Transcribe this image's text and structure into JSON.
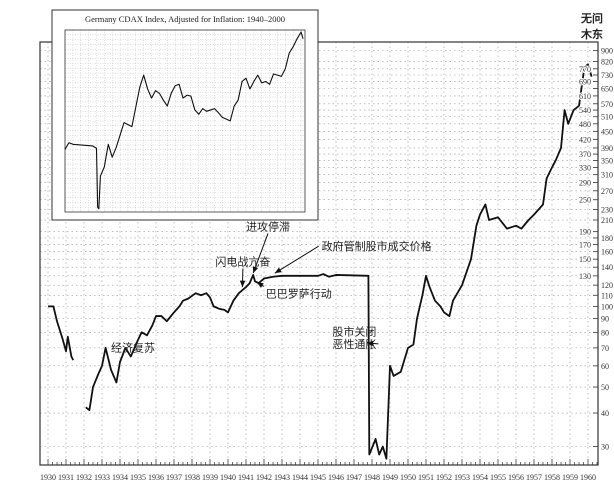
{
  "corner_label": [
    "无问",
    "木东"
  ],
  "chart_data": [
    {
      "type": "line",
      "title": "",
      "xlabel": "",
      "ylabel": "",
      "y_scale": "log",
      "xlim": [
        1929.6,
        1960.5
      ],
      "ylim": [
        26,
        900
      ],
      "grid": true,
      "x_ticks": [
        1930,
        1931,
        1932,
        1933,
        1934,
        1935,
        1936,
        1937,
        1938,
        1939,
        1940,
        1941,
        1942,
        1943,
        1944,
        1945,
        1946,
        1947,
        1948,
        1949,
        1950,
        1951,
        1952,
        1953,
        1954,
        1955,
        1956,
        1957,
        1958,
        1959,
        1960
      ],
      "y_ticks": [
        30,
        40,
        50,
        60,
        70,
        80,
        90,
        100,
        110,
        120,
        130,
        140,
        150,
        160,
        170,
        180,
        190,
        210,
        230,
        250,
        270,
        290,
        310,
        330,
        350,
        370,
        390,
        420,
        450,
        480,
        510,
        540,
        570,
        610,
        650,
        690,
        730,
        770,
        820,
        900
      ],
      "series": [
        {
          "segments": [
            [
              [
                1930,
                100
              ],
              [
                1930.3,
                100
              ],
              [
                1930.5,
                88
              ],
              [
                1930.8,
                76
              ],
              [
                1931,
                68
              ],
              [
                1931.1,
                77
              ],
              [
                1931.3,
                65
              ],
              [
                1931.4,
                63
              ]
            ],
            [
              [
                1932.1,
                42
              ],
              [
                1932.3,
                41
              ],
              [
                1932.5,
                50
              ],
              [
                1932.8,
                56
              ],
              [
                1933,
                60
              ],
              [
                1933.2,
                70
              ],
              [
                1933.5,
                58
              ],
              [
                1933.8,
                52
              ],
              [
                1934,
                62
              ],
              [
                1934.3,
                70
              ],
              [
                1934.6,
                65
              ],
              [
                1935,
                75
              ],
              [
                1935.2,
                80
              ],
              [
                1935.5,
                78
              ],
              [
                1935.8,
                85
              ],
              [
                1936,
                92
              ],
              [
                1936.3,
                92
              ],
              [
                1936.6,
                88
              ],
              [
                1937,
                95
              ],
              [
                1937.3,
                100
              ],
              [
                1937.5,
                105
              ],
              [
                1937.8,
                107
              ],
              [
                1938.2,
                112
              ],
              [
                1938.5,
                110
              ],
              [
                1938.8,
                112
              ],
              [
                1939,
                108
              ],
              [
                1939.2,
                100
              ],
              [
                1939.5,
                98
              ],
              [
                1939.8,
                97
              ],
              [
                1940,
                95
              ],
              [
                1940.3,
                105
              ],
              [
                1940.6,
                112
              ],
              [
                1941,
                118
              ],
              [
                1941.2,
                122
              ],
              [
                1941.4,
                131
              ],
              [
                1941.5,
                124
              ],
              [
                1941.7,
                122
              ],
              [
                1942,
                127
              ],
              [
                1942.5,
                129
              ],
              [
                1943,
                130
              ],
              [
                1945,
                130
              ],
              [
                1945.3,
                132
              ],
              [
                1945.6,
                129
              ],
              [
                1946,
                131
              ],
              [
                1947.8,
                130
              ],
              [
                1947.85,
                28
              ],
              [
                1948.2,
                32
              ],
              [
                1948.4,
                28
              ],
              [
                1948.6,
                30
              ],
              [
                1948.8,
                27
              ],
              [
                1949,
                60
              ],
              [
                1949.2,
                55
              ],
              [
                1949.6,
                57
              ],
              [
                1950,
                70
              ],
              [
                1950.3,
                72
              ],
              [
                1950.5,
                90
              ],
              [
                1950.8,
                110
              ],
              [
                1951,
                130
              ],
              [
                1951.2,
                118
              ],
              [
                1951.5,
                105
              ],
              [
                1951.8,
                100
              ],
              [
                1952,
                95
              ],
              [
                1952.3,
                92
              ],
              [
                1952.5,
                105
              ],
              [
                1953,
                120
              ],
              [
                1953.5,
                150
              ],
              [
                1953.8,
                200
              ],
              [
                1954,
                220
              ],
              [
                1954.3,
                240
              ],
              [
                1954.5,
                210
              ],
              [
                1955,
                215
              ],
              [
                1955.5,
                195
              ],
              [
                1956,
                200
              ],
              [
                1956.3,
                195
              ],
              [
                1956.7,
                210
              ],
              [
                1957,
                220
              ],
              [
                1957.5,
                240
              ],
              [
                1957.7,
                300
              ],
              [
                1958,
                330
              ],
              [
                1958.2,
                350
              ],
              [
                1958.5,
                390
              ],
              [
                1958.7,
                540
              ],
              [
                1958.9,
                480
              ],
              [
                1959.2,
                540
              ],
              [
                1959.5,
                560
              ],
              [
                1959.8,
                780
              ],
              [
                1960,
                800
              ],
              [
                1960.2,
                720
              ]
            ]
          ]
        }
      ],
      "annotations": [
        {
          "text": "经济复苏",
          "x": 1933.5,
          "y": 68
        },
        {
          "text": "闪电战亢奋",
          "x": 1939.3,
          "y": 142,
          "arrow_to": [
            1940.8,
            118
          ]
        },
        {
          "text": "进攻停滞",
          "x": 1941.0,
          "y": 192,
          "arrow_to": [
            1941.4,
            133
          ]
        },
        {
          "text": "巴巴罗萨行动",
          "x": 1942.1,
          "y": 108,
          "arrow_to": [
            1941.6,
            123
          ]
        },
        {
          "text": "政府管制股市成交价格",
          "x": 1945.2,
          "y": 162,
          "arrow_to": [
            1942.6,
            133
          ]
        },
        {
          "text": "股市关闭",
          "x": 1945.8,
          "y": 78
        },
        {
          "text": "恶性通胀",
          "x": 1945.8,
          "y": 70,
          "arrow_to": [
            1947.7,
            73
          ]
        }
      ]
    },
    {
      "type": "line",
      "title": "Germany CDAX Index, Adjusted for Inflation: 1940–2000",
      "y_scale": "log",
      "xlim": [
        1940,
        2001
      ],
      "ylim": [
        25,
        2100
      ],
      "grid": true,
      "series": [
        {
          "values": [
            [
              1940,
              115
            ],
            [
              1941,
              135
            ],
            [
              1942,
              130
            ],
            [
              1947,
              125
            ],
            [
              1948,
              118
            ],
            [
              1948.3,
              28
            ],
            [
              1948.6,
              27
            ],
            [
              1949,
              60
            ],
            [
              1950,
              75
            ],
            [
              1951,
              130
            ],
            [
              1952,
              95
            ],
            [
              1953,
              120
            ],
            [
              1955,
              220
            ],
            [
              1957,
              200
            ],
            [
              1959,
              520
            ],
            [
              1960,
              700
            ],
            [
              1961,
              500
            ],
            [
              1962,
              400
            ],
            [
              1963,
              480
            ],
            [
              1964,
              450
            ],
            [
              1965,
              380
            ],
            [
              1966,
              330
            ],
            [
              1967,
              450
            ],
            [
              1968,
              540
            ],
            [
              1969,
              560
            ],
            [
              1970,
              400
            ],
            [
              1971,
              430
            ],
            [
              1972,
              420
            ],
            [
              1973,
              300
            ],
            [
              1974,
              270
            ],
            [
              1975,
              310
            ],
            [
              1976,
              290
            ],
            [
              1977,
              300
            ],
            [
              1978,
              310
            ],
            [
              1979,
              280
            ],
            [
              1980,
              250
            ],
            [
              1981,
              240
            ],
            [
              1982,
              230
            ],
            [
              1983,
              330
            ],
            [
              1984,
              380
            ],
            [
              1985,
              600
            ],
            [
              1986,
              650
            ],
            [
              1987,
              500
            ],
            [
              1988,
              600
            ],
            [
              1989,
              700
            ],
            [
              1990,
              580
            ],
            [
              1991,
              600
            ],
            [
              1992,
              560
            ],
            [
              1993,
              720
            ],
            [
              1994,
              700
            ],
            [
              1995,
              680
            ],
            [
              1996,
              820
            ],
            [
              1997,
              1200
            ],
            [
              1998,
              1400
            ],
            [
              1999,
              1700
            ],
            [
              2000,
              2000
            ],
            [
              2000.5,
              1700
            ]
          ]
        }
      ]
    }
  ]
}
